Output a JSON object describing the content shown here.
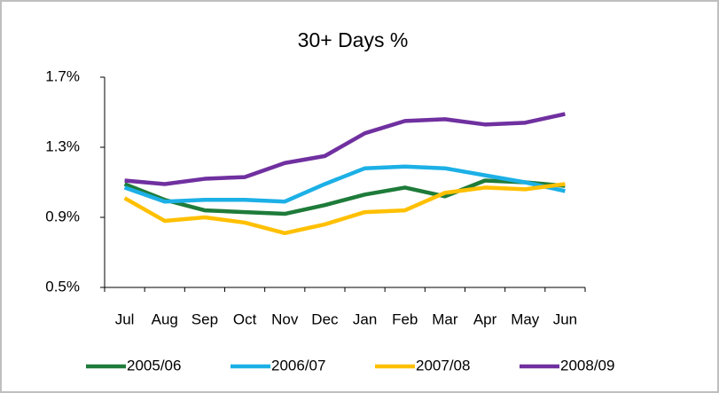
{
  "chart_data": {
    "type": "line",
    "title": "30+ Days %",
    "categories": [
      "Jul",
      "Aug",
      "Sep",
      "Oct",
      "Nov",
      "Dec",
      "Jan",
      "Feb",
      "Mar",
      "Apr",
      "May",
      "Jun"
    ],
    "series": [
      {
        "name": "2005/06",
        "color": "#1e7b3a",
        "values": [
          1.09,
          1.0,
          0.94,
          0.93,
          0.92,
          0.97,
          1.03,
          1.07,
          1.02,
          1.11,
          1.1,
          1.08
        ]
      },
      {
        "name": "2006/07",
        "color": "#1cb0e6",
        "values": [
          1.07,
          0.99,
          1.0,
          1.0,
          0.99,
          1.09,
          1.18,
          1.19,
          1.18,
          1.14,
          1.1,
          1.05
        ]
      },
      {
        "name": "2007/08",
        "color": "#ffc000",
        "values": [
          1.01,
          0.88,
          0.9,
          0.87,
          0.81,
          0.86,
          0.93,
          0.94,
          1.04,
          1.07,
          1.06,
          1.09
        ]
      },
      {
        "name": "2008/09",
        "color": "#7030a0",
        "values": [
          1.11,
          1.09,
          1.12,
          1.13,
          1.21,
          1.25,
          1.38,
          1.45,
          1.46,
          1.43,
          1.44,
          1.49
        ]
      }
    ],
    "ylim": [
      0.5,
      1.7
    ],
    "yticks": [
      {
        "value": 0.5,
        "label": "0.5%"
      },
      {
        "value": 0.9,
        "label": "0.9%"
      },
      {
        "value": 1.3,
        "label": "1.3%"
      },
      {
        "value": 1.7,
        "label": "1.7%"
      }
    ],
    "grid": false,
    "legend": "bottom"
  }
}
